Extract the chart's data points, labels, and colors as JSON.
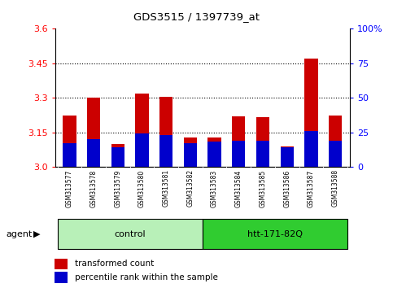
{
  "title": "GDS3515 / 1397739_at",
  "samples": [
    "GSM313577",
    "GSM313578",
    "GSM313579",
    "GSM313580",
    "GSM313581",
    "GSM313582",
    "GSM313583",
    "GSM313584",
    "GSM313585",
    "GSM313586",
    "GSM313587",
    "GSM313588"
  ],
  "red_values": [
    3.225,
    3.3,
    3.1,
    3.32,
    3.305,
    3.13,
    3.13,
    3.22,
    3.215,
    3.085,
    3.47,
    3.225
  ],
  "blue_values": [
    3.105,
    3.12,
    3.085,
    3.145,
    3.14,
    3.105,
    3.11,
    3.115,
    3.115,
    3.09,
    3.155,
    3.115
  ],
  "blue_widths": [
    0.008,
    0.008,
    0.008,
    0.008,
    0.008,
    0.008,
    0.008,
    0.008,
    0.008,
    0.008,
    0.008,
    0.008
  ],
  "y_min": 3.0,
  "y_max": 3.6,
  "y_ticks": [
    3.0,
    3.15,
    3.3,
    3.45,
    3.6
  ],
  "y2_ticks": [
    0,
    25,
    50,
    75,
    100
  ],
  "y2_tick_labels": [
    "0",
    "25",
    "50",
    "75",
    "100%"
  ],
  "groups": [
    {
      "label": "control",
      "start": 0,
      "end": 6,
      "color": "#b8f0b8"
    },
    {
      "label": "htt-171-82Q",
      "start": 6,
      "end": 12,
      "color": "#30cc30"
    }
  ],
  "bar_width": 0.55,
  "red_color": "#cc0000",
  "blue_color": "#0000cc",
  "background_color": "#ffffff",
  "tick_area_color": "#c8c8c8",
  "legend_red": "transformed count",
  "legend_blue": "percentile rank within the sample",
  "agent_label": "agent",
  "grid_lines": [
    3.15,
    3.3,
    3.45
  ]
}
